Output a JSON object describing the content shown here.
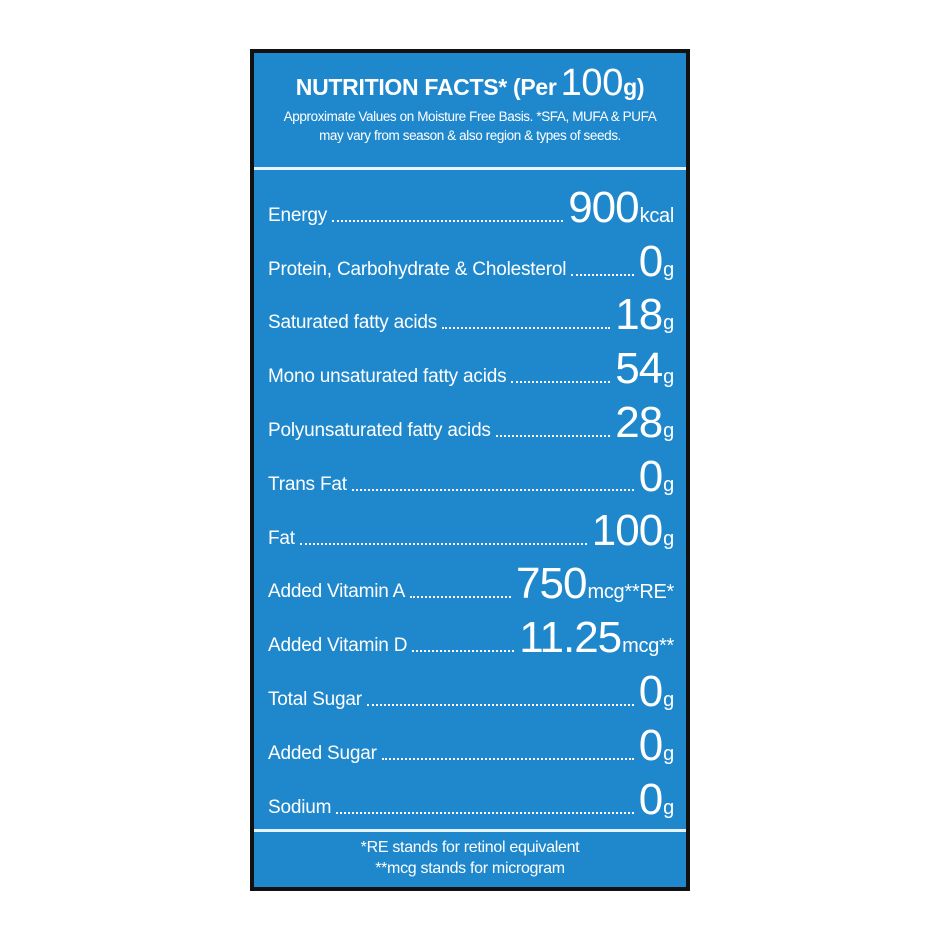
{
  "header": {
    "title": "NUTRITION FACTS* (Per",
    "title_amount": "100",
    "title_unit": "g)",
    "note": "Approximate Values on Moisture Free Basis. *SFA, MUFA & PUFA may vary from season & also region & types of seeds."
  },
  "rows": [
    {
      "label": "Energy",
      "value": "900",
      "unit": "kcal"
    },
    {
      "label": "Protein, Carbohydrate & Cholesterol",
      "value": "0",
      "unit": "g"
    },
    {
      "label": "Saturated fatty acids",
      "value": "18",
      "unit": "g"
    },
    {
      "label": "Mono unsaturated fatty acids",
      "value": "54",
      "unit": "g"
    },
    {
      "label": "Polyunsaturated fatty acids",
      "value": "28",
      "unit": "g"
    },
    {
      "label": "Trans Fat",
      "value": "0",
      "unit": "g"
    },
    {
      "label": "Fat",
      "value": "100",
      "unit": "g"
    },
    {
      "label": "Added Vitamin A",
      "value": "750",
      "unit": "mcg**RE*"
    },
    {
      "label": "Added Vitamin D",
      "value": "11.25",
      "unit": "mcg**"
    },
    {
      "label": "Total Sugar",
      "value": "0",
      "unit": "g"
    },
    {
      "label": "Added Sugar",
      "value": "0",
      "unit": "g"
    },
    {
      "label": "Sodium",
      "value": "0",
      "unit": "g"
    }
  ],
  "footer": {
    "line1": "*RE stands for retinol equivalent",
    "line2": "**mcg stands for microgram"
  },
  "colors": {
    "background": "#1f88cd",
    "border": "#111111",
    "text": "#ffffff"
  }
}
